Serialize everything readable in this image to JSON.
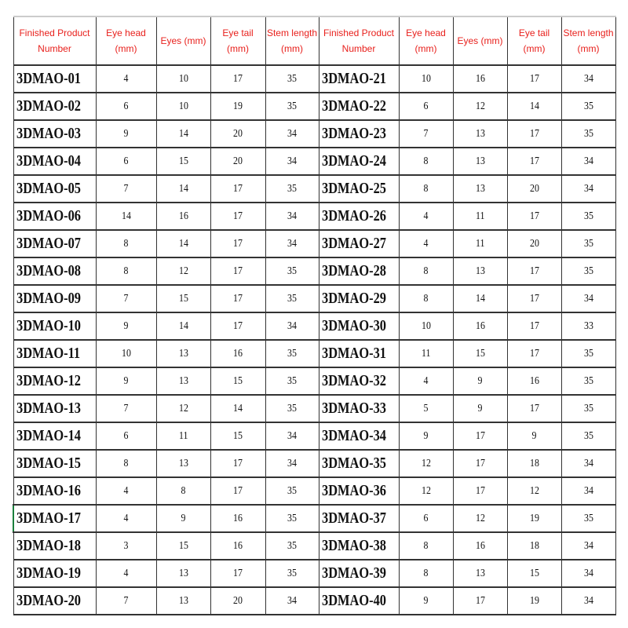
{
  "table": {
    "headers": [
      "Finished Product Number",
      "Eye head (mm)",
      "Eyes (mm)",
      "Eye tail (mm)",
      "Stem length (mm)",
      "Finished Product Number",
      "Eye head (mm)",
      "Eyes (mm)",
      "Eye tail (mm)",
      "Stem length (mm)"
    ],
    "rows": [
      [
        "3DMAO-01",
        "4",
        "10",
        "17",
        "35",
        "3DMAO-21",
        "10",
        "16",
        "17",
        "34"
      ],
      [
        "3DMAO-02",
        "6",
        "10",
        "19",
        "35",
        "3DMAO-22",
        "6",
        "12",
        "14",
        "35"
      ],
      [
        "3DMAO-03",
        "9",
        "14",
        "20",
        "34",
        "3DMAO-23",
        "7",
        "13",
        "17",
        "35"
      ],
      [
        "3DMAO-04",
        "6",
        "15",
        "20",
        "34",
        "3DMAO-24",
        "8",
        "13",
        "17",
        "34"
      ],
      [
        "3DMAO-05",
        "7",
        "14",
        "17",
        "35",
        "3DMAO-25",
        "8",
        "13",
        "20",
        "34"
      ],
      [
        "3DMAO-06",
        "14",
        "16",
        "17",
        "34",
        "3DMAO-26",
        "4",
        "11",
        "17",
        "35"
      ],
      [
        "3DMAO-07",
        "8",
        "14",
        "17",
        "34",
        "3DMAO-27",
        "4",
        "11",
        "20",
        "35"
      ],
      [
        "3DMAO-08",
        "8",
        "12",
        "17",
        "35",
        "3DMAO-28",
        "8",
        "13",
        "17",
        "35"
      ],
      [
        "3DMAO-09",
        "7",
        "15",
        "17",
        "35",
        "3DMAO-29",
        "8",
        "14",
        "17",
        "34"
      ],
      [
        "3DMAO-10",
        "9",
        "14",
        "17",
        "34",
        "3DMAO-30",
        "10",
        "16",
        "17",
        "33"
      ],
      [
        "3DMAO-11",
        "10",
        "13",
        "16",
        "35",
        "3DMAO-31",
        "11",
        "15",
        "17",
        "35"
      ],
      [
        "3DMAO-12",
        "9",
        "13",
        "15",
        "35",
        "3DMAO-32",
        "4",
        "9",
        "16",
        "35"
      ],
      [
        "3DMAO-13",
        "7",
        "12",
        "14",
        "35",
        "3DMAO-33",
        "5",
        "9",
        "17",
        "35"
      ],
      [
        "3DMAO-14",
        "6",
        "11",
        "15",
        "34",
        "3DMAO-34",
        "9",
        "17",
        "9",
        "35"
      ],
      [
        "3DMAO-15",
        "8",
        "13",
        "17",
        "34",
        "3DMAO-35",
        "12",
        "17",
        "18",
        "34"
      ],
      [
        "3DMAO-16",
        "4",
        "8",
        "17",
        "35",
        "3DMAO-36",
        "12",
        "17",
        "12",
        "34"
      ],
      [
        "3DMAO-17",
        "4",
        "9",
        "16",
        "35",
        "3DMAO-37",
        "6",
        "12",
        "19",
        "35"
      ],
      [
        "3DMAO-18",
        "3",
        "15",
        "16",
        "35",
        "3DMAO-38",
        "8",
        "16",
        "18",
        "34"
      ],
      [
        "3DMAO-19",
        "4",
        "13",
        "17",
        "35",
        "3DMAO-39",
        "8",
        "13",
        "15",
        "34"
      ],
      [
        "3DMAO-20",
        "7",
        "13",
        "20",
        "34",
        "3DMAO-40",
        "9",
        "17",
        "19",
        "34"
      ]
    ],
    "header_color": "#e8201c",
    "selected_row": 16
  }
}
